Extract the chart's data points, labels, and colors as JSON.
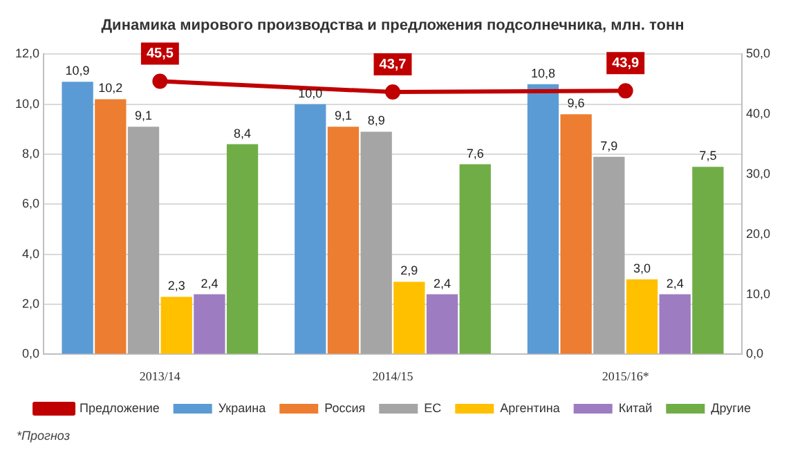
{
  "chart_data": {
    "type": "bar",
    "title": "Динамика мирового производства и предложения подсолнечника, млн. тонн",
    "categories": [
      "2013/14",
      "2014/15",
      "2015/16*"
    ],
    "series": [
      {
        "name": "Украина",
        "color": "#5b9bd5",
        "values": [
          10.9,
          10.0,
          10.8
        ],
        "value_labels": [
          "10,9",
          "10,0",
          "10,8"
        ]
      },
      {
        "name": "Россия",
        "color": "#ed7d31",
        "values": [
          10.2,
          9.1,
          9.6
        ],
        "value_labels": [
          "10,2",
          "9,1",
          "9,6"
        ]
      },
      {
        "name": "ЕС",
        "color": "#a5a5a5",
        "values": [
          9.1,
          8.9,
          7.9
        ],
        "value_labels": [
          "9,1",
          "8,9",
          "7,9"
        ]
      },
      {
        "name": "Аргентина",
        "color": "#ffc000",
        "values": [
          2.3,
          2.9,
          3.0
        ],
        "value_labels": [
          "2,3",
          "2,9",
          "3,0"
        ]
      },
      {
        "name": "Китай",
        "color": "#9e7cc1",
        "values": [
          2.4,
          2.4,
          2.4
        ],
        "value_labels": [
          "2,4",
          "2,4",
          "2,4"
        ]
      },
      {
        "name": "Другие",
        "color": "#70ad47",
        "values": [
          8.4,
          7.6,
          7.5
        ],
        "value_labels": [
          "8,4",
          "7,6",
          "7,5"
        ]
      },
      {
        "name": "Предложение",
        "type": "line",
        "axis": "y2",
        "color": "#c00000",
        "values": [
          45.5,
          43.7,
          43.9
        ],
        "value_labels": [
          "45,5",
          "43,7",
          "43,9"
        ]
      }
    ],
    "ylim": [
      0,
      12
    ],
    "yticks": [
      {
        "value": 0,
        "label": "0,0"
      },
      {
        "value": 2,
        "label": "2,0"
      },
      {
        "value": 4,
        "label": "4,0"
      },
      {
        "value": 6,
        "label": "6,0"
      },
      {
        "value": 8,
        "label": "8,0"
      },
      {
        "value": 10,
        "label": "10,0"
      },
      {
        "value": 12,
        "label": "12,0"
      }
    ],
    "y2lim": [
      0,
      50
    ],
    "y2ticks": [
      {
        "value": 0,
        "label": "0,0"
      },
      {
        "value": 10,
        "label": "10,0"
      },
      {
        "value": 20,
        "label": "20,0"
      },
      {
        "value": 30,
        "label": "30,0"
      },
      {
        "value": 40,
        "label": "40,0"
      },
      {
        "value": 50,
        "label": "50,0"
      }
    ],
    "grid": "y",
    "legend": "bottom",
    "marker": "circle",
    "line_style": "solid",
    "annotations": [
      "*Прогноз"
    ]
  }
}
